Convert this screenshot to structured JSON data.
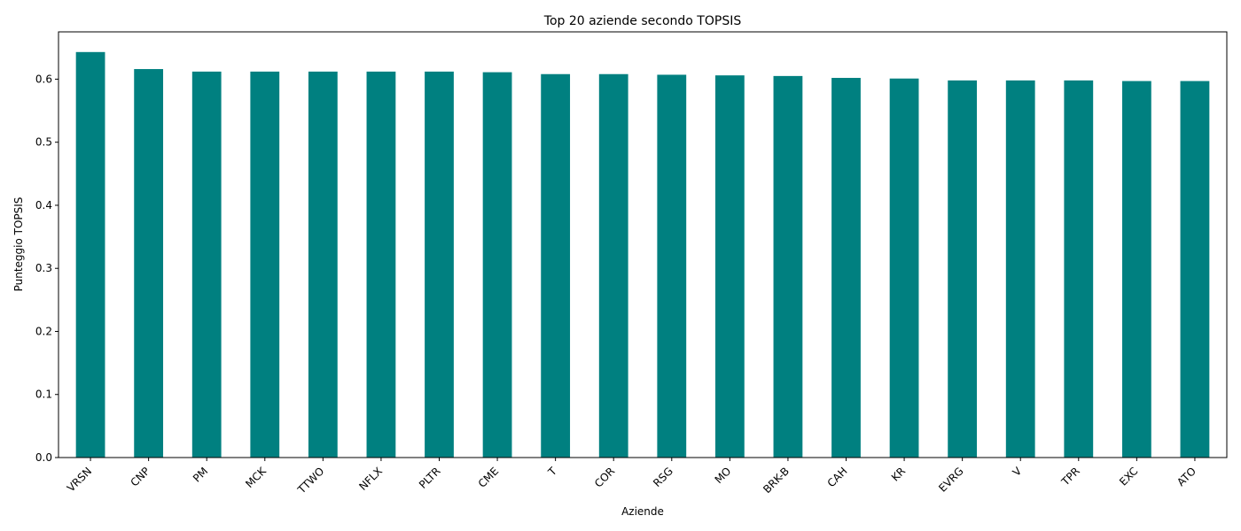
{
  "chart_data": {
    "type": "bar",
    "title": "Top 20 aziende secondo TOPSIS",
    "xlabel": "Aziende",
    "ylabel": "Punteggio TOPSIS",
    "categories": [
      "VRSN",
      "CNP",
      "PM",
      "MCK",
      "TTWO",
      "NFLX",
      "PLTR",
      "CME",
      "T",
      "COR",
      "RSG",
      "MO",
      "BRK-B",
      "CAH",
      "KR",
      "EVRG",
      "V",
      "TPR",
      "EXC",
      "ATO"
    ],
    "values": [
      0.643,
      0.616,
      0.612,
      0.612,
      0.612,
      0.612,
      0.612,
      0.611,
      0.608,
      0.608,
      0.607,
      0.606,
      0.605,
      0.602,
      0.601,
      0.598,
      0.598,
      0.598,
      0.597,
      0.597
    ],
    "yticks": [
      "0.0",
      "0.1",
      "0.2",
      "0.3",
      "0.4",
      "0.5",
      "0.6"
    ],
    "ylim": [
      0,
      0.675
    ],
    "bar_color": "#008080",
    "grid": false,
    "legend": "none"
  }
}
